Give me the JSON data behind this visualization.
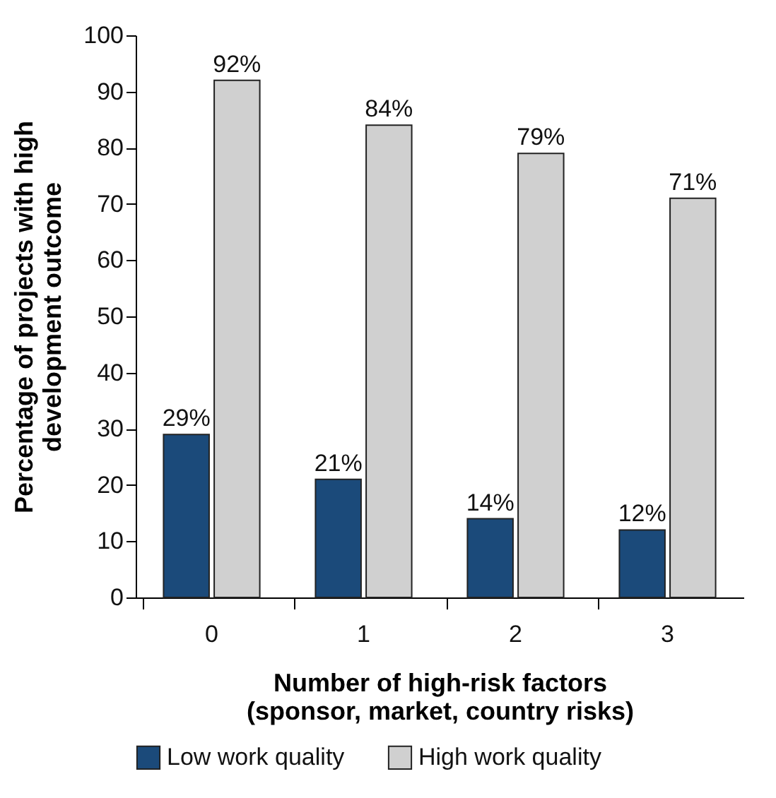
{
  "chart_data": {
    "type": "bar",
    "xlabel": "Number of high-risk factors\n(sponsor, market, country risks)",
    "ylabel": "Percentage of projects with high\ndevelopment outcome",
    "categories": [
      "0",
      "1",
      "2",
      "3"
    ],
    "series": [
      {
        "name": "Low work quality",
        "color": "#1b4a7a",
        "values": [
          29,
          21,
          14,
          12
        ],
        "value_labels": [
          "29%",
          "21%",
          "14%",
          "12%"
        ]
      },
      {
        "name": "High work quality",
        "color": "#d0d0d0",
        "values": [
          92,
          84,
          79,
          71
        ],
        "value_labels": [
          "92%",
          "84%",
          "79%",
          "71%"
        ]
      }
    ],
    "ylim": [
      0,
      100
    ],
    "yticks": [
      0,
      10,
      20,
      30,
      40,
      50,
      60,
      70,
      80,
      90,
      100
    ],
    "grid": false,
    "legend": "bottom"
  }
}
